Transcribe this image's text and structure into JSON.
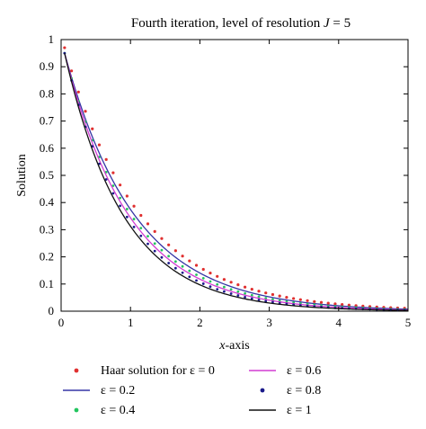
{
  "chart_data": {
    "type": "line",
    "title_main": "Fourth iteration, level of resolution ",
    "title_var": "J",
    "title_suffix": " = 5",
    "xlabel_var": "x",
    "xlabel_suffix": "-axis",
    "ylabel": "Solution",
    "xlim": [
      0,
      5
    ],
    "ylim": [
      0,
      1
    ],
    "xticks": [
      0,
      1,
      2,
      3,
      4,
      5
    ],
    "yticks": [
      0,
      0.1,
      0.2,
      0.3,
      0.4,
      0.5,
      0.6,
      0.7,
      0.8,
      0.9,
      1
    ],
    "ytick_labels": [
      "0",
      "0.1",
      "0.2",
      "0.3",
      "0.4",
      "0.5",
      "0.6",
      "0.7",
      "0.8",
      "0.9",
      "1"
    ],
    "grid": false,
    "legend_position": "bottom",
    "series": [
      {
        "name": "Haar solution for ε = 0",
        "style": "dots",
        "color": "#e03030",
        "x0": 0.05,
        "y0": 0.97,
        "rate": 0.92
      },
      {
        "name": "ε = 0.2",
        "style": "line",
        "color": "#3535a5",
        "x0": 0.05,
        "y0": 0.95,
        "rate": 0.98
      },
      {
        "name": "ε = 0.4",
        "style": "dots",
        "color": "#22c55e",
        "x0": 0.05,
        "y0": 0.95,
        "rate": 1.03
      },
      {
        "name": "ε = 0.6",
        "style": "line",
        "color": "#d23cd2",
        "x0": 0.05,
        "y0": 0.95,
        "rate": 1.07
      },
      {
        "name": "ε = 0.8",
        "style": "dots",
        "color": "#1a1a8a",
        "x0": 0.05,
        "y0": 0.95,
        "rate": 1.12
      },
      {
        "name": "ε = 1",
        "style": "line",
        "color": "#111111",
        "x0": 0.05,
        "y0": 0.95,
        "rate": 1.17
      }
    ]
  }
}
